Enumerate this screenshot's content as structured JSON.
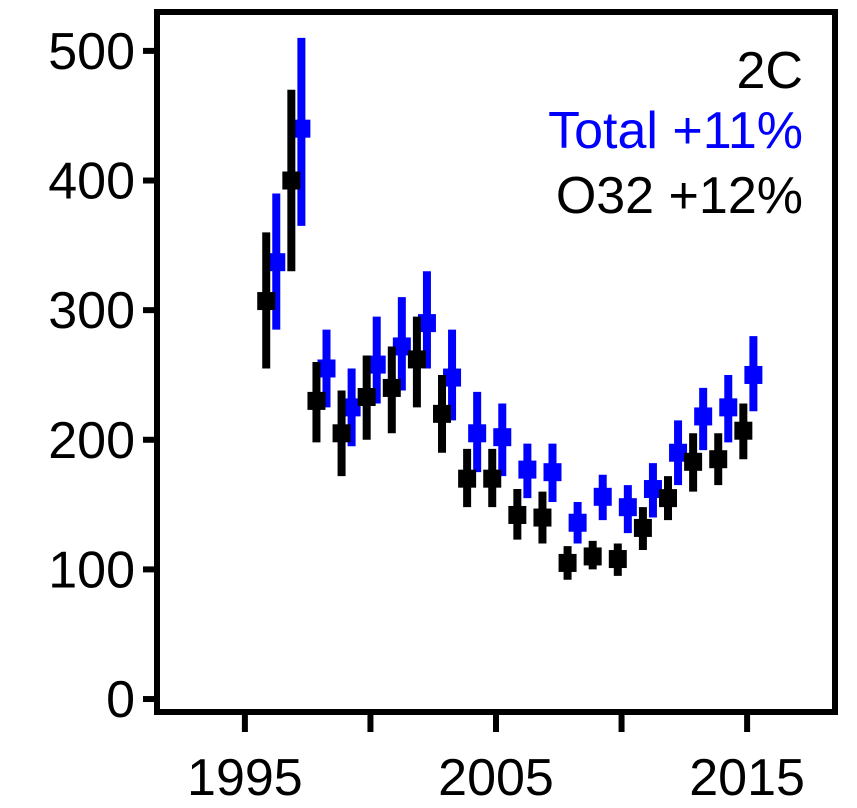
{
  "chart_data": {
    "type": "scatter",
    "title": "2C",
    "xlim": [
      1991.5,
      2018.5
    ],
    "ylim": [
      -10,
      530
    ],
    "x_ticks": [
      1995,
      2000,
      2005,
      2010,
      2015
    ],
    "x_tick_labels": [
      "1995",
      "",
      "2005",
      "",
      "2015"
    ],
    "y_ticks": [
      0,
      100,
      200,
      300,
      400,
      500
    ],
    "y_tick_labels": [
      "0",
      "100",
      "200",
      "300",
      "400",
      "500"
    ],
    "grid": false,
    "legend": "none",
    "annotations": [
      {
        "text": "Total +11%",
        "color": "#0000ff"
      },
      {
        "text": "O32 +12%",
        "color": "#000000"
      }
    ],
    "series": [
      {
        "color": "#0000ff",
        "x_offset": 0.25,
        "points": [
          {
            "x": 1996,
            "y": 337,
            "lo": 285,
            "hi": 390
          },
          {
            "x": 1997,
            "y": 440,
            "lo": 365,
            "hi": 510
          },
          {
            "x": 1998,
            "y": 255,
            "lo": 225,
            "hi": 285
          },
          {
            "x": 1999,
            "y": 225,
            "lo": 195,
            "hi": 255
          },
          {
            "x": 2000,
            "y": 258,
            "lo": 228,
            "hi": 295
          },
          {
            "x": 2001,
            "y": 272,
            "lo": 238,
            "hi": 310
          },
          {
            "x": 2002,
            "y": 290,
            "lo": 255,
            "hi": 330
          },
          {
            "x": 2003,
            "y": 248,
            "lo": 215,
            "hi": 285
          },
          {
            "x": 2004,
            "y": 205,
            "lo": 175,
            "hi": 237
          },
          {
            "x": 2005,
            "y": 202,
            "lo": 172,
            "hi": 228
          },
          {
            "x": 2006,
            "y": 177,
            "lo": 155,
            "hi": 197
          },
          {
            "x": 2007,
            "y": 175,
            "lo": 152,
            "hi": 197
          },
          {
            "x": 2008,
            "y": 136,
            "lo": 120,
            "hi": 152
          },
          {
            "x": 2009,
            "y": 156,
            "lo": 138,
            "hi": 173
          },
          {
            "x": 2010,
            "y": 148,
            "lo": 128,
            "hi": 165
          },
          {
            "x": 2011,
            "y": 162,
            "lo": 140,
            "hi": 182
          },
          {
            "x": 2012,
            "y": 190,
            "lo": 165,
            "hi": 215
          },
          {
            "x": 2013,
            "y": 218,
            "lo": 192,
            "hi": 240
          },
          {
            "x": 2014,
            "y": 225,
            "lo": 198,
            "hi": 250
          },
          {
            "x": 2015,
            "y": 250,
            "lo": 222,
            "hi": 280
          }
        ]
      },
      {
        "color": "#000000",
        "x_offset": -0.15,
        "points": [
          {
            "x": 1996,
            "y": 307,
            "lo": 255,
            "hi": 360
          },
          {
            "x": 1997,
            "y": 400,
            "lo": 330,
            "hi": 470
          },
          {
            "x": 1998,
            "y": 230,
            "lo": 198,
            "hi": 260
          },
          {
            "x": 1999,
            "y": 205,
            "lo": 172,
            "hi": 238
          },
          {
            "x": 2000,
            "y": 233,
            "lo": 200,
            "hi": 265
          },
          {
            "x": 2001,
            "y": 240,
            "lo": 205,
            "hi": 272
          },
          {
            "x": 2002,
            "y": 262,
            "lo": 225,
            "hi": 295
          },
          {
            "x": 2003,
            "y": 220,
            "lo": 190,
            "hi": 250
          },
          {
            "x": 2004,
            "y": 170,
            "lo": 148,
            "hi": 193
          },
          {
            "x": 2005,
            "y": 170,
            "lo": 148,
            "hi": 193
          },
          {
            "x": 2006,
            "y": 142,
            "lo": 123,
            "hi": 162
          },
          {
            "x": 2007,
            "y": 140,
            "lo": 120,
            "hi": 160
          },
          {
            "x": 2008,
            "y": 105,
            "lo": 92,
            "hi": 118
          },
          {
            "x": 2009,
            "y": 110,
            "lo": 100,
            "hi": 122
          },
          {
            "x": 2010,
            "y": 108,
            "lo": 95,
            "hi": 120
          },
          {
            "x": 2011,
            "y": 132,
            "lo": 115,
            "hi": 148
          },
          {
            "x": 2012,
            "y": 155,
            "lo": 138,
            "hi": 172
          },
          {
            "x": 2013,
            "y": 183,
            "lo": 160,
            "hi": 205
          },
          {
            "x": 2014,
            "y": 185,
            "lo": 165,
            "hi": 205
          },
          {
            "x": 2015,
            "y": 207,
            "lo": 185,
            "hi": 228
          }
        ]
      }
    ]
  }
}
